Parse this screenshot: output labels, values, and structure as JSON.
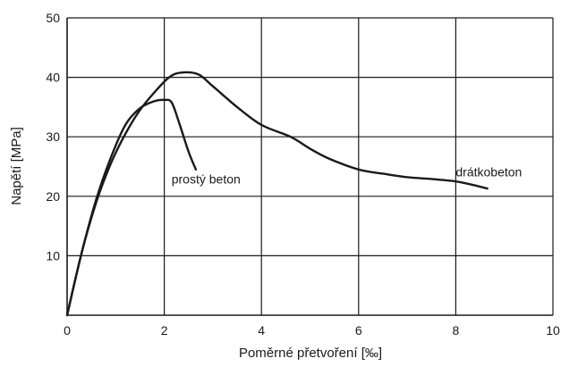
{
  "chart_data": {
    "type": "line",
    "title": "",
    "xlabel": "Poměrné přetvoření [‰]",
    "ylabel": "Napětí [MPa]",
    "xlim": [
      0,
      10
    ],
    "ylim": [
      0,
      50
    ],
    "xticks": [
      "0",
      "2",
      "4",
      "6",
      "8",
      "10"
    ],
    "yticks": [
      "10",
      "20",
      "30",
      "40",
      "50"
    ],
    "grid": true,
    "legend": "inline labels",
    "line_color": "#1a1a1a",
    "series": [
      {
        "name": "prostý beton",
        "x": [
          0,
          0.3,
          0.6,
          0.9,
          1.2,
          1.5,
          1.8,
          2.0,
          2.15,
          2.3,
          2.5,
          2.65
        ],
        "y": [
          0,
          10.5,
          19.5,
          26.5,
          32.0,
          34.8,
          36.0,
          36.2,
          35.8,
          32.5,
          27.5,
          24.5
        ]
      },
      {
        "name": "drátkobeton",
        "x": [
          0,
          0.3,
          0.6,
          0.9,
          1.2,
          1.5,
          1.8,
          2.1,
          2.35,
          2.7,
          3.0,
          3.5,
          4.0,
          4.6,
          5.0,
          5.4,
          6.0,
          6.5,
          7.0,
          7.5,
          8.0,
          8.3,
          8.65
        ],
        "y": [
          0,
          10.5,
          19.0,
          25.5,
          30.5,
          34.5,
          37.5,
          40.0,
          40.8,
          40.5,
          38.5,
          35.0,
          32.0,
          30.0,
          28.0,
          26.3,
          24.5,
          23.8,
          23.2,
          22.9,
          22.5,
          22.0,
          21.3
        ]
      }
    ],
    "annotations": [
      {
        "text": "prostý beton",
        "x": 2.15,
        "y": 22.9
      },
      {
        "text": "drátkobeton",
        "x": 8.0,
        "y": 24.1
      }
    ]
  }
}
